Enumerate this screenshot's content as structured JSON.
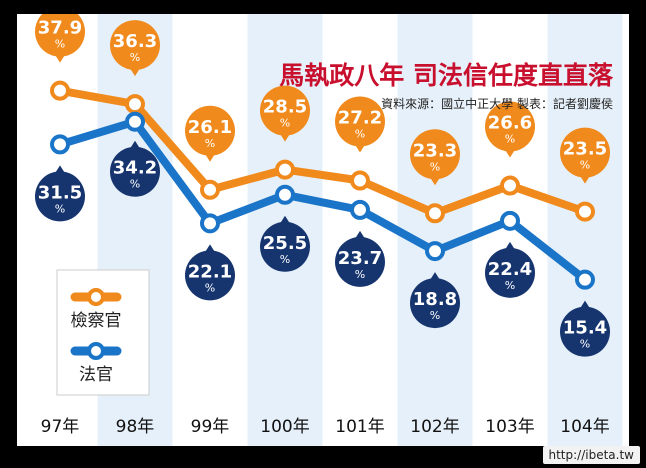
{
  "title": "馬執政八年  司法信任度直直落",
  "source": "資料來源：國立中正大學   製表：記者劉慶侯",
  "watermark": "http://ibeta.tw",
  "colors": {
    "prosecutors": "#f08a1c",
    "judiciary": "#1a75c9",
    "judiciary_label": "#16356f",
    "title": "#c8102e",
    "stripe": "#e6f0fa"
  },
  "chart_data": {
    "type": "line",
    "categories": [
      "97年",
      "98年",
      "99年",
      "100年",
      "101年",
      "102年",
      "103年",
      "104年"
    ],
    "series": [
      {
        "name": "檢察官",
        "values": [
          37.9,
          36.3,
          26.1,
          28.5,
          27.2,
          23.3,
          26.6,
          23.5
        ]
      },
      {
        "name": "法官",
        "values": [
          31.5,
          34.2,
          22.1,
          25.5,
          23.7,
          18.8,
          22.4,
          15.4
        ]
      }
    ],
    "value_suffix": "%",
    "legend_position": "left",
    "grid": false
  }
}
